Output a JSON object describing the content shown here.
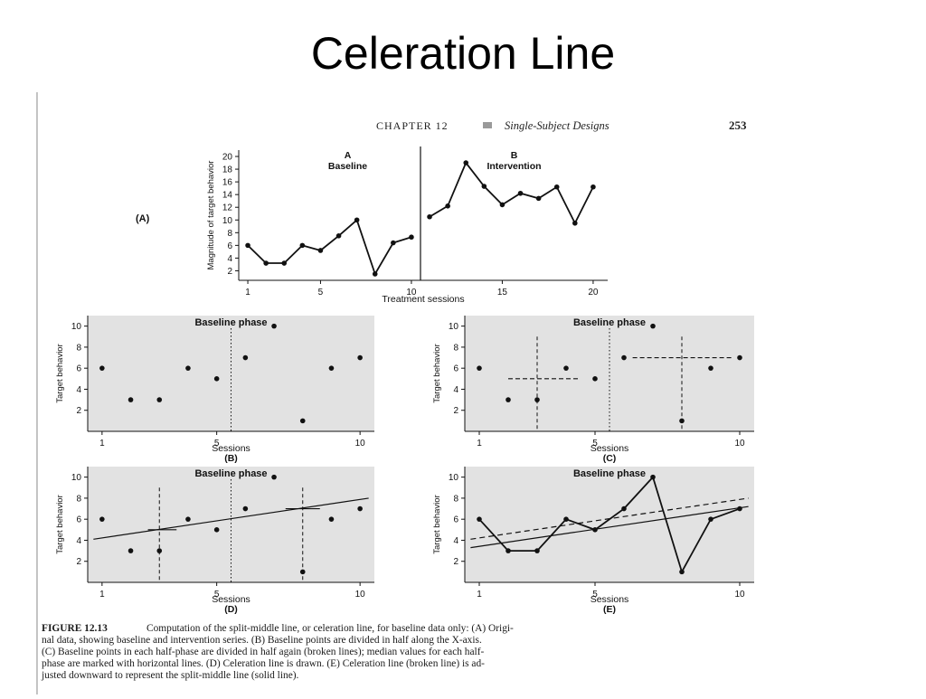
{
  "slide": {
    "title": "Celeration Line"
  },
  "book": {
    "chapter": "CHAPTER 12",
    "chapter_title": "Single-Subject Designs",
    "page_number": "253"
  },
  "caption": {
    "label": "FIGURE 12.13",
    "lines": [
      "Computation of the split-middle line, or celeration line, for baseline data only: (A) Origi-",
      "nal data, showing baseline and intervention series. (B) Baseline points are divided in half along the X-axis.",
      "(C) Baseline points in each half-phase are divided in half again (broken lines); median values for each half-",
      "phase are marked with horizontal lines. (D) Celeration line is drawn. (E) Celeration line (broken line) is ad-",
      "justed downward to represent the split-middle line (solid line)."
    ]
  },
  "colors": {
    "panel_shade": "#e2e2e2",
    "ink": "#111111"
  },
  "chart_data": [
    {
      "id": "A",
      "type": "line",
      "panel_label": "(A)",
      "xlabel": "Treatment sessions",
      "ylabel": "Magnitude of target behavior",
      "xlim": [
        0.5,
        20.8
      ],
      "ylim": [
        0.5,
        21
      ],
      "xticks": [
        1,
        5,
        10,
        15,
        20
      ],
      "yticks": [
        2,
        4,
        6,
        8,
        10,
        12,
        14,
        16,
        18,
        20
      ],
      "phase_line_x": 10.5,
      "phases": [
        {
          "letter": "A",
          "name": "Baseline"
        },
        {
          "letter": "B",
          "name": "Intervention"
        }
      ],
      "series": [
        {
          "x": [
            1,
            2,
            3,
            4,
            5,
            6,
            7,
            8,
            9,
            10
          ],
          "y": [
            6,
            3.2,
            3.2,
            6,
            5.2,
            7.5,
            10,
            1.5,
            6.4,
            7.3
          ]
        },
        {
          "x": [
            11,
            12,
            13,
            14,
            15,
            16,
            17,
            18,
            19,
            20
          ],
          "y": [
            10.5,
            12.2,
            19,
            15.3,
            12.4,
            14.2,
            13.4,
            15.2,
            9.5,
            15.2
          ]
        }
      ]
    },
    {
      "id": "B",
      "type": "scatter",
      "panel_label": "(B)",
      "title": "Baseline phase",
      "xlabel": "Sessions",
      "ylabel": "Target behavior",
      "xlim": [
        0.5,
        10.5
      ],
      "ylim": [
        0,
        11
      ],
      "xticks": [
        1,
        5,
        10
      ],
      "yticks": [
        2,
        4,
        6,
        8,
        10
      ],
      "split_x": 5.5,
      "x": [
        1,
        2,
        3,
        4,
        5,
        6,
        7,
        8,
        9,
        10
      ],
      "y": [
        6,
        3,
        3,
        6,
        5,
        7,
        10,
        1,
        6,
        7
      ]
    },
    {
      "id": "C",
      "type": "scatter",
      "panel_label": "(C)",
      "title": "Baseline phase",
      "xlabel": "Sessions",
      "ylabel": "Target behavior",
      "xlim": [
        0.5,
        10.5
      ],
      "ylim": [
        0,
        11
      ],
      "xticks": [
        1,
        5,
        10
      ],
      "yticks": [
        2,
        4,
        6,
        8,
        10
      ],
      "split_x": 5.5,
      "quarter_x": [
        3,
        8
      ],
      "medians": [
        {
          "x": [
            2,
            4.5
          ],
          "y": 5
        },
        {
          "x": [
            6.3,
            9.8
          ],
          "y": 7
        }
      ],
      "x": [
        1,
        2,
        3,
        4,
        5,
        6,
        7,
        8,
        9,
        10
      ],
      "y": [
        6,
        3,
        3,
        6,
        5,
        7,
        10,
        1,
        6,
        7
      ]
    },
    {
      "id": "D",
      "type": "scatter",
      "panel_label": "(D)",
      "title": "Baseline phase",
      "xlabel": "Sessions",
      "ylabel": "Target behavior",
      "xlim": [
        0.5,
        10.5
      ],
      "ylim": [
        0,
        11
      ],
      "xticks": [
        1,
        5,
        10
      ],
      "yticks": [
        2,
        4,
        6,
        8,
        10
      ],
      "split_x": 5.5,
      "quarter_x": [
        3,
        8
      ],
      "medians": [
        {
          "x": [
            2.6,
            3.6
          ],
          "y": 5
        },
        {
          "x": [
            7.4,
            8.6
          ],
          "y": 7
        }
      ],
      "celeration_line": {
        "x": [
          0.7,
          10.3
        ],
        "y": [
          4.1,
          8
        ]
      },
      "x": [
        1,
        2,
        3,
        4,
        5,
        6,
        7,
        8,
        9,
        10
      ],
      "y": [
        6,
        3,
        3,
        6,
        5,
        7,
        10,
        1,
        6,
        7
      ]
    },
    {
      "id": "E",
      "type": "line",
      "panel_label": "(E)",
      "title": "Baseline phase",
      "xlabel": "Sessions",
      "ylabel": "Target behavior",
      "xlim": [
        0.5,
        10.5
      ],
      "ylim": [
        0,
        11
      ],
      "xticks": [
        1,
        5,
        10
      ],
      "yticks": [
        2,
        4,
        6,
        8,
        10
      ],
      "celeration_line": {
        "x": [
          0.7,
          10.3
        ],
        "y": [
          4.1,
          8
        ]
      },
      "split_middle_line": {
        "x": [
          0.7,
          10.3
        ],
        "y": [
          3.3,
          7.2
        ]
      },
      "x": [
        1,
        2,
        3,
        4,
        5,
        6,
        7,
        8,
        9,
        10
      ],
      "y": [
        6,
        3,
        3,
        6,
        5,
        7,
        10,
        1,
        6,
        7
      ]
    }
  ]
}
